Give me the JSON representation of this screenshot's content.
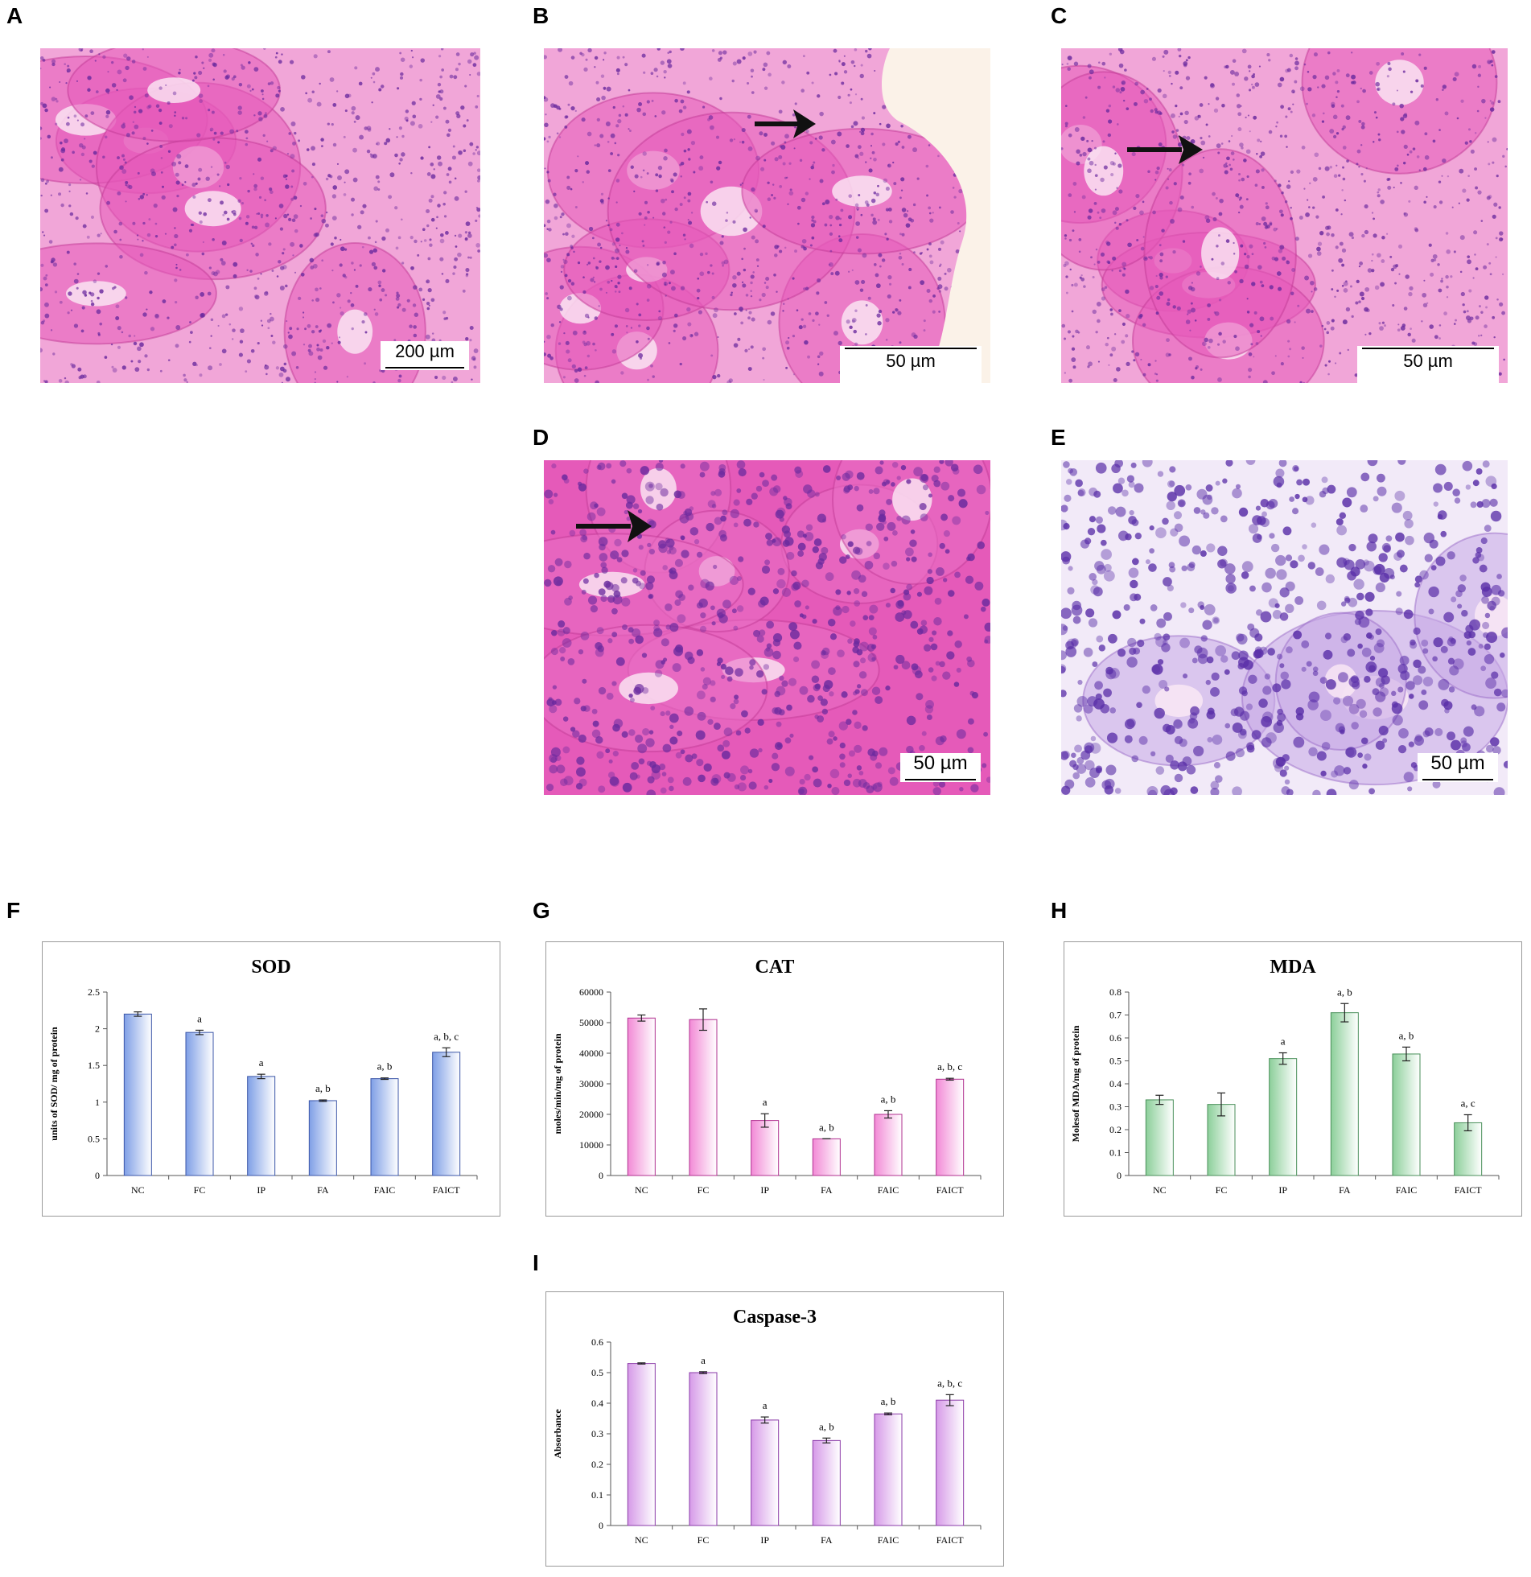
{
  "panels": {
    "A": {
      "letter": "A",
      "scale": "200 µm"
    },
    "B": {
      "letter": "B",
      "scale": "50 µm"
    },
    "C": {
      "letter": "C",
      "scale": "50 µm"
    },
    "D": {
      "letter": "D",
      "scale": "50 µm"
    },
    "E": {
      "letter": "E",
      "scale": "50 µm"
    },
    "F": {
      "letter": "F"
    },
    "G": {
      "letter": "G"
    },
    "H": {
      "letter": "H"
    },
    "I": {
      "letter": "I"
    }
  },
  "colors": {
    "he_pink": "#e55ab9",
    "he_pink_light": "#f1a6d8",
    "nuclei": "#6a2a9e",
    "purple_stain": "#c7a8e6",
    "sod_bar": "#7f9fe6",
    "cat_bar": "#f28ad6",
    "mda_bar": "#8ccf9a",
    "casp_bar": "#d69ae8"
  },
  "chart_data": [
    {
      "type": "bar",
      "title": "SOD",
      "ylabel": "units of SOD/ mg of protein",
      "categories": [
        "NC",
        "FC",
        "IP",
        "FA",
        "FAIC",
        "FAICT"
      ],
      "values": [
        2.2,
        1.95,
        1.35,
        1.02,
        1.32,
        1.68
      ],
      "errors": [
        0.03,
        0.03,
        0.03,
        0.01,
        0.01,
        0.06
      ],
      "annotations": [
        "",
        "a",
        "a",
        "a, b",
        "a, b",
        "a, b, c"
      ],
      "ylim": [
        0,
        2.5
      ],
      "yticks": [
        "0",
        "0.5",
        "1",
        "1.5",
        "2",
        "2.5"
      ],
      "ytick_values": [
        0,
        0.5,
        1,
        1.5,
        2,
        2.5
      ],
      "color": "#7f9fe6",
      "edge": "#3b56a8"
    },
    {
      "type": "bar",
      "title": "CAT",
      "ylabel": "moles/min/mg of protein",
      "categories": [
        "NC",
        "FC",
        "IP",
        "FA",
        "FAIC",
        "FAICT"
      ],
      "values": [
        51500,
        51000,
        18000,
        12000,
        20000,
        31500
      ],
      "errors": [
        1000,
        3500,
        2200,
        0,
        1200,
        300
      ],
      "annotations": [
        "",
        "",
        "a",
        "a, b",
        "a, b",
        "a, b, c"
      ],
      "ylim": [
        0,
        60000
      ],
      "yticks": [
        "0",
        "10000",
        "20000",
        "30000",
        "40000",
        "50000",
        "60000"
      ],
      "ytick_values": [
        0,
        10000,
        20000,
        30000,
        40000,
        50000,
        60000
      ],
      "color": "#f28ad6",
      "edge": "#b0308f"
    },
    {
      "type": "bar",
      "title": "MDA",
      "ylabel": "Molesof MDA/mg of protein",
      "categories": [
        "NC",
        "FC",
        "IP",
        "FA",
        "FAIC",
        "FAICT"
      ],
      "values": [
        0.33,
        0.31,
        0.51,
        0.71,
        0.53,
        0.23
      ],
      "errors": [
        0.02,
        0.05,
        0.025,
        0.04,
        0.03,
        0.035
      ],
      "annotations": [
        "",
        "",
        "a",
        "a, b",
        "a, b",
        "a, c"
      ],
      "ylim": [
        0,
        0.8
      ],
      "yticks": [
        "0",
        "0.1",
        "0.2",
        "0.3",
        "0.4",
        "0.5",
        "0.6",
        "0.7",
        "0.8"
      ],
      "ytick_values": [
        0,
        0.1,
        0.2,
        0.3,
        0.4,
        0.5,
        0.6,
        0.7,
        0.8
      ],
      "color": "#8ccf9a",
      "edge": "#4a8f5a"
    },
    {
      "type": "bar",
      "title": "Caspase-3",
      "ylabel": "Absorbance",
      "categories": [
        "NC",
        "FC",
        "IP",
        "FA",
        "FAIC",
        "FAICT"
      ],
      "values": [
        0.53,
        0.5,
        0.345,
        0.278,
        0.365,
        0.41
      ],
      "errors": [
        0.002,
        0.003,
        0.01,
        0.008,
        0.003,
        0.018
      ],
      "annotations": [
        "",
        "a",
        "a",
        "a, b",
        "a, b",
        "a, b, c"
      ],
      "ylim": [
        0,
        0.6
      ],
      "yticks": [
        "0",
        "0.1",
        "0.2",
        "0.3",
        "0.4",
        "0.5",
        "0.6"
      ],
      "ytick_values": [
        0,
        0.1,
        0.2,
        0.3,
        0.4,
        0.5,
        0.6
      ],
      "color": "#d69ae8",
      "edge": "#8a3aa8"
    }
  ]
}
